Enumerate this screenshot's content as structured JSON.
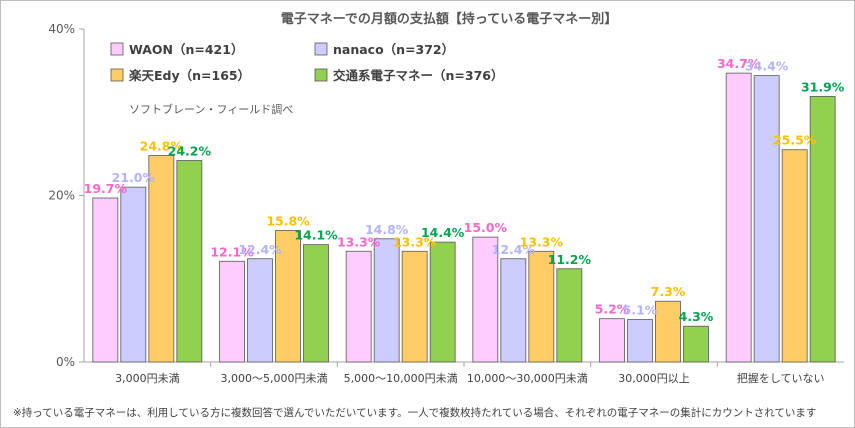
{
  "chart_data": {
    "type": "bar",
    "title": "電子マネーでの月額の支払額【持っている電子マネー別】",
    "source_note": "ソフトブレーン・フィールド調べ",
    "footnote": "※持っている電子マネーは、利用している方に複数回答で選んでいただいています。一人で複数枚持たれている場合、それぞれの電子マネーの集計にカウントされています",
    "ylim": [
      0,
      40
    ],
    "yticks": [
      0,
      20,
      40
    ],
    "ytick_labels": [
      "0%",
      "20%",
      "40%"
    ],
    "grid": false,
    "legend_position": "top-left",
    "categories": [
      "3,000円未満",
      "3,000～5,000円未満",
      "5,000～10,000円未満",
      "10,000～30,000円未満",
      "30,000円以上",
      "把握をしていない"
    ],
    "series": [
      {
        "name": "WAON（n=421）",
        "color": "#ffccff",
        "label_color": "#ff66cc",
        "values": [
          19.7,
          12.1,
          13.3,
          15.0,
          5.2,
          34.7
        ],
        "labels": [
          "19.7%",
          "12.1%",
          "13.3%",
          "15.0%",
          "5.2%",
          "34.7%"
        ]
      },
      {
        "name": "nanaco（n=372）",
        "color": "#ccccff",
        "label_color": "#b3b3ff",
        "values": [
          21.0,
          12.4,
          14.8,
          12.4,
          5.1,
          34.4
        ],
        "labels": [
          "21.0%",
          "12.4%",
          "14.8%",
          "12.4%",
          "5.1%",
          "34.4%"
        ]
      },
      {
        "name": "楽天Edy（n=165）",
        "color": "#ffcc66",
        "label_color": "#ffc000",
        "values": [
          24.8,
          15.8,
          13.3,
          13.3,
          7.3,
          25.5
        ],
        "labels": [
          "24.8%",
          "15.8%",
          "13.3%",
          "13.3%",
          "7.3%",
          "25.5%"
        ]
      },
      {
        "name": "交通系電子マネー（n=376）",
        "color": "#92d050",
        "label_color": "#00a651",
        "values": [
          24.2,
          14.1,
          14.4,
          11.2,
          4.3,
          31.9
        ],
        "labels": [
          "24.2%",
          "14.1%",
          "14.4%",
          "11.2%",
          "4.3%",
          "31.9%"
        ]
      }
    ]
  }
}
